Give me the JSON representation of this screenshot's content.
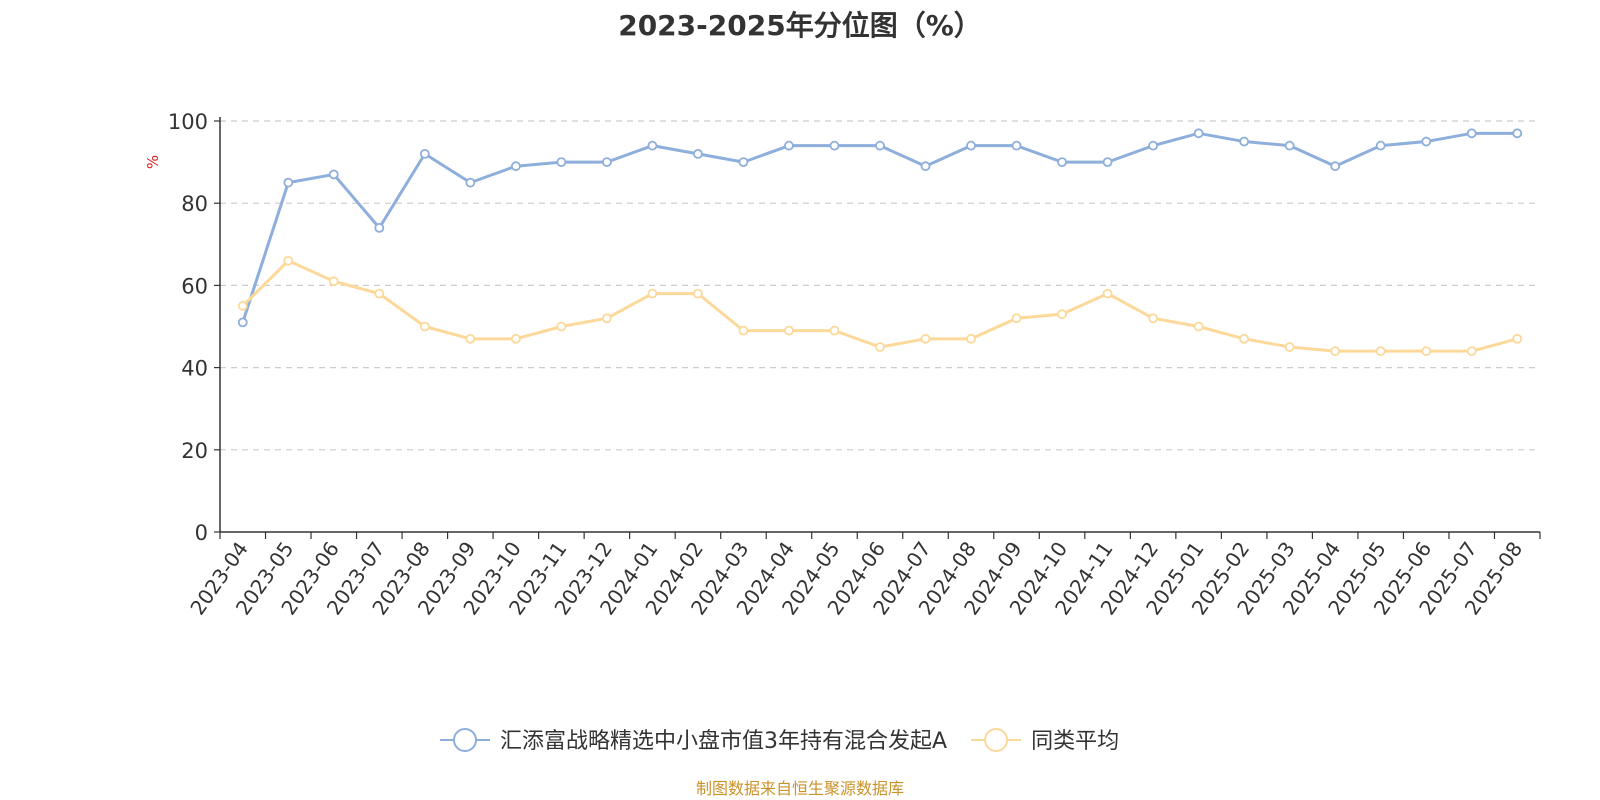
{
  "chart_data": {
    "type": "line",
    "title": "2023-2025年分位图（%）",
    "ylabel": "%",
    "xlabel": "",
    "ylim": [
      0,
      100
    ],
    "yticks": [
      0,
      20,
      40,
      60,
      80,
      100
    ],
    "grid": "horizontal dashed",
    "legend_position": "bottom",
    "categories": [
      "2023-04",
      "2023-05",
      "2023-06",
      "2023-07",
      "2023-08",
      "2023-09",
      "2023-10",
      "2023-11",
      "2023-12",
      "2024-01",
      "2024-02",
      "2024-03",
      "2024-04",
      "2024-05",
      "2024-06",
      "2024-07",
      "2024-08",
      "2024-09",
      "2024-10",
      "2024-11",
      "2024-12",
      "2025-01",
      "2025-02",
      "2025-03",
      "2025-04",
      "2025-05",
      "2025-06",
      "2025-07",
      "2025-08"
    ],
    "series": [
      {
        "name": "汇添富战略精选中小盘市值3年持有混合发起A",
        "color": "#8eaedb",
        "values": [
          51,
          85,
          87,
          74,
          92,
          85,
          89,
          90,
          90,
          94,
          92,
          90,
          94,
          94,
          94,
          89,
          94,
          94,
          90,
          90,
          94,
          97,
          95,
          94,
          89,
          94,
          95,
          97,
          97
        ]
      },
      {
        "name": "同类平均",
        "color": "#fcd99a",
        "values": [
          55,
          66,
          61,
          58,
          50,
          47,
          47,
          50,
          52,
          58,
          58,
          49,
          49,
          49,
          45,
          47,
          47,
          52,
          53,
          58,
          52,
          50,
          47,
          45,
          44,
          44,
          44,
          44,
          47
        ]
      }
    ]
  },
  "source_note": "制图数据来自恒生聚源数据库"
}
